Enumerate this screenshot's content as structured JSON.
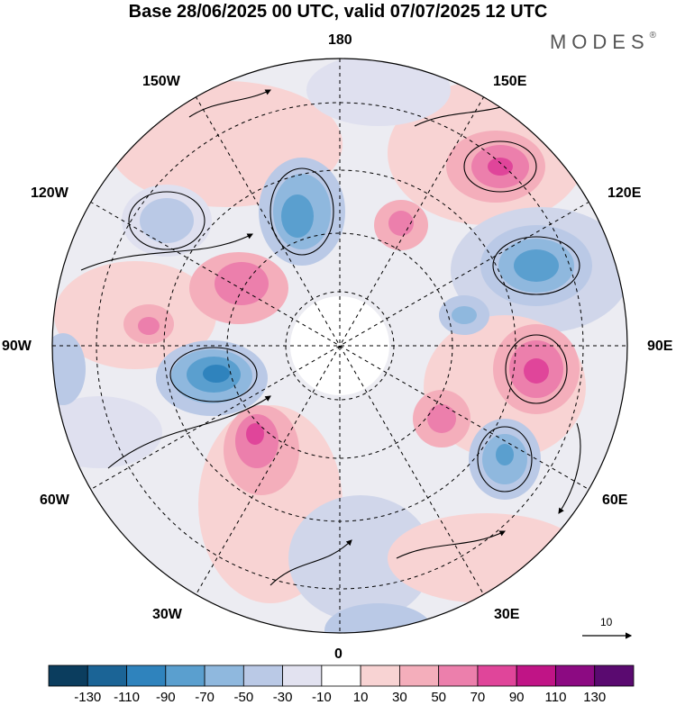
{
  "title": "Base 28/06/2025 00 UTC, valid 07/07/2025 12 UTC",
  "brand": "MODES",
  "brand_mark": "®",
  "longitude_labels": {
    "top": "180",
    "bottom": "0",
    "left": "90W",
    "right": "90E",
    "upper_left_1": "150W",
    "upper_left_2": "120W",
    "lower_left_1": "60W",
    "lower_left_2": "30W",
    "upper_right_1": "150E",
    "upper_right_2": "120E",
    "lower_right_1": "60E",
    "lower_right_2": "30E"
  },
  "wind_scale_label": "10",
  "colorbar": {
    "colors": [
      "#0b3d5e",
      "#1b6496",
      "#2f83bd",
      "#5a9fcf",
      "#8fb8de",
      "#bac9e6",
      "#e2e2f0",
      "#ffffff",
      "#f8d3d3",
      "#f4aebb",
      "#ec7fac",
      "#e0459a",
      "#c01486",
      "#8c0a82",
      "#5a0a70"
    ],
    "labels": [
      "-130",
      "-110",
      "-90",
      "-70",
      "-50",
      "-30",
      "-10",
      "10",
      "30",
      "50",
      "70",
      "90",
      "110",
      "130"
    ]
  },
  "icons": {
    "map": "polar-stereographic-map",
    "arrow": "wind-arrow-icon"
  }
}
